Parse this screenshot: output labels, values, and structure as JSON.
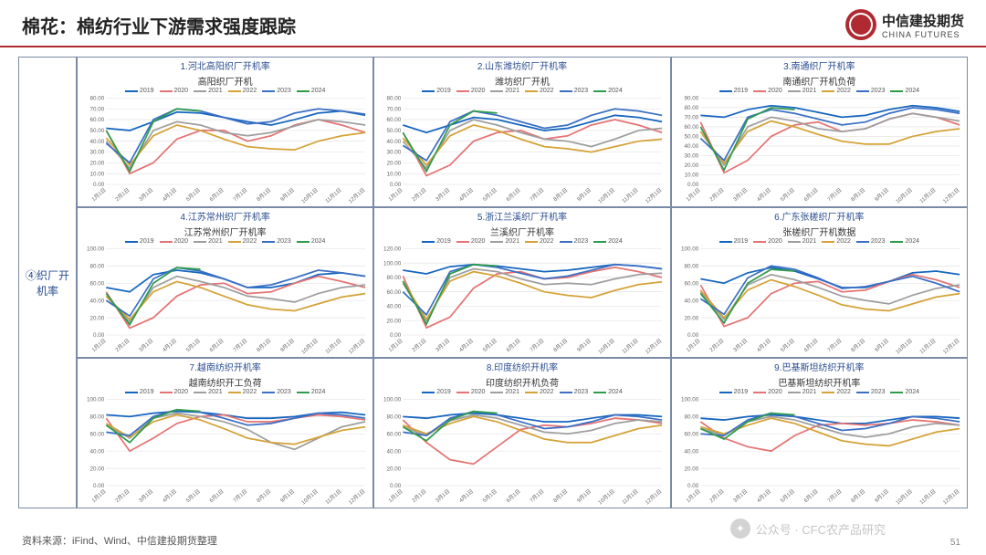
{
  "header": {
    "title": "棉花：棉纺行业下游需求强度跟踪",
    "logo_cn": "中信建投期货",
    "logo_en": "CHINA FUTURES"
  },
  "row_label": "④织厂开机率",
  "footer": "资料来源：iFind、Wind、中信建投期货整理",
  "page_number": "51",
  "watermark": "公众号 · CFC农产品研究",
  "legend_years": [
    "2019",
    "2020",
    "2021",
    "2022",
    "2023",
    "2024"
  ],
  "legend_colors": [
    "#1565c0",
    "#e57373",
    "#9e9e9e",
    "#d4a237",
    "#3a6fc4",
    "#2e9b4a"
  ],
  "x_labels": [
    "1月1日",
    "2月1日",
    "3月1日",
    "4月1日",
    "5月1日",
    "6月1日",
    "7月1日",
    "8月1日",
    "9月1日",
    "10月1日",
    "11月1日",
    "12月1日"
  ],
  "charts": [
    {
      "head": "1.河北高阳织厂开机率",
      "title": "高阳织厂开机",
      "ymin": 0,
      "ymax": 80,
      "ystep": 10,
      "series": [
        [
          52,
          50,
          58,
          67,
          66,
          62,
          58,
          55,
          60,
          66,
          68,
          64
        ],
        [
          50,
          10,
          20,
          42,
          50,
          50,
          40,
          45,
          55,
          60,
          55,
          48
        ],
        [
          40,
          15,
          50,
          58,
          55,
          48,
          45,
          48,
          54,
          60,
          58,
          55
        ],
        [
          43,
          18,
          45,
          55,
          50,
          42,
          35,
          33,
          32,
          40,
          45,
          48
        ],
        [
          38,
          20,
          60,
          70,
          68,
          62,
          56,
          58,
          66,
          70,
          68,
          65
        ],
        [
          50,
          12,
          58,
          70,
          68,
          null,
          null,
          null,
          null,
          null,
          null,
          null
        ]
      ]
    },
    {
      "head": "2.山东潍坊织厂开机率",
      "title": "潍坊织厂开机",
      "ymin": 0,
      "ymax": 80,
      "ystep": 10,
      "series": [
        [
          55,
          48,
          55,
          62,
          60,
          55,
          50,
          52,
          58,
          64,
          62,
          58
        ],
        [
          48,
          8,
          18,
          40,
          48,
          50,
          42,
          45,
          55,
          60,
          55,
          48
        ],
        [
          40,
          15,
          50,
          60,
          55,
          48,
          42,
          40,
          35,
          42,
          50,
          52
        ],
        [
          43,
          18,
          45,
          55,
          50,
          42,
          35,
          33,
          30,
          35,
          40,
          42
        ],
        [
          36,
          22,
          58,
          68,
          64,
          58,
          52,
          55,
          64,
          70,
          68,
          64
        ],
        [
          48,
          12,
          55,
          68,
          66,
          null,
          null,
          null,
          null,
          null,
          null,
          null
        ]
      ]
    },
    {
      "head": "3.南通织厂开机率",
      "title": "南通织厂开机负荷",
      "ymin": 0,
      "ymax": 90,
      "ystep": 10,
      "series": [
        [
          72,
          70,
          78,
          82,
          80,
          75,
          70,
          72,
          78,
          82,
          80,
          76
        ],
        [
          65,
          12,
          25,
          50,
          62,
          65,
          55,
          58,
          68,
          74,
          70,
          62
        ],
        [
          55,
          20,
          60,
          70,
          66,
          58,
          55,
          58,
          68,
          74,
          70,
          66
        ],
        [
          55,
          22,
          55,
          66,
          60,
          52,
          45,
          42,
          42,
          50,
          55,
          58
        ],
        [
          48,
          25,
          70,
          78,
          74,
          68,
          62,
          65,
          74,
          80,
          78,
          74
        ],
        [
          60,
          15,
          68,
          80,
          78,
          null,
          null,
          null,
          null,
          null,
          null,
          null
        ]
      ]
    },
    {
      "head": "4.江苏常州织厂开机率",
      "title": "江苏常州织厂开机率",
      "ymin": 0,
      "ymax": 100,
      "ystep": 20,
      "series": [
        [
          55,
          50,
          70,
          75,
          72,
          65,
          55,
          55,
          60,
          70,
          72,
          68
        ],
        [
          50,
          8,
          20,
          45,
          58,
          60,
          48,
          50,
          60,
          68,
          62,
          55
        ],
        [
          45,
          15,
          55,
          68,
          62,
          55,
          45,
          42,
          38,
          48,
          55,
          58
        ],
        [
          45,
          18,
          50,
          62,
          55,
          45,
          35,
          30,
          28,
          36,
          44,
          48
        ],
        [
          40,
          22,
          65,
          78,
          74,
          65,
          55,
          58,
          66,
          75,
          72,
          68
        ],
        [
          48,
          12,
          60,
          78,
          76,
          null,
          null,
          null,
          null,
          null,
          null,
          null
        ]
      ]
    },
    {
      "head": "5.浙江兰溪织厂开机率",
      "title": "兰溪织厂开机率",
      "ymin": 0,
      "ymax": 120,
      "ystep": 20,
      "series": [
        [
          90,
          85,
          95,
          98,
          96,
          92,
          88,
          90,
          94,
          98,
          96,
          92
        ],
        [
          82,
          10,
          25,
          65,
          85,
          88,
          78,
          80,
          88,
          94,
          88,
          80
        ],
        [
          72,
          20,
          80,
          92,
          88,
          78,
          70,
          72,
          70,
          78,
          84,
          86
        ],
        [
          75,
          22,
          75,
          88,
          82,
          72,
          60,
          55,
          52,
          62,
          70,
          74
        ],
        [
          60,
          28,
          88,
          98,
          94,
          86,
          78,
          82,
          90,
          98,
          96,
          92
        ],
        [
          75,
          15,
          85,
          98,
          96,
          null,
          null,
          null,
          null,
          null,
          null,
          null
        ]
      ]
    },
    {
      "head": "6.广东张槎织厂开机率",
      "title": "张槎织厂开机数据",
      "ymin": 0,
      "ymax": 100,
      "ystep": 20,
      "series": [
        [
          65,
          60,
          72,
          78,
          74,
          65,
          55,
          55,
          62,
          72,
          74,
          70
        ],
        [
          58,
          10,
          20,
          48,
          60,
          62,
          50,
          52,
          62,
          70,
          64,
          55
        ],
        [
          50,
          18,
          58,
          70,
          64,
          55,
          45,
          40,
          36,
          46,
          54,
          58
        ],
        [
          52,
          20,
          52,
          64,
          56,
          46,
          35,
          30,
          28,
          36,
          44,
          48
        ],
        [
          42,
          24,
          66,
          80,
          76,
          66,
          54,
          56,
          62,
          68,
          60,
          50
        ],
        [
          48,
          14,
          60,
          76,
          74,
          null,
          null,
          null,
          null,
          null,
          null,
          null
        ]
      ]
    },
    {
      "head": "7.越南纺织开机率",
      "title": "越南纺织开工负荷",
      "ymin": 0,
      "ymax": 100,
      "ystep": 20,
      "series": [
        [
          82,
          80,
          84,
          86,
          85,
          82,
          78,
          78,
          80,
          84,
          85,
          82
        ],
        [
          78,
          40,
          55,
          72,
          80,
          82,
          74,
          74,
          78,
          82,
          80,
          76
        ],
        [
          70,
          55,
          78,
          84,
          80,
          74,
          65,
          50,
          42,
          55,
          68,
          74
        ],
        [
          72,
          56,
          74,
          82,
          76,
          66,
          55,
          50,
          48,
          56,
          64,
          68
        ],
        [
          62,
          58,
          80,
          88,
          85,
          78,
          70,
          72,
          78,
          84,
          82,
          78
        ],
        [
          70,
          50,
          78,
          88,
          86,
          null,
          null,
          null,
          null,
          null,
          null,
          null
        ]
      ]
    },
    {
      "head": "8.印度纺织开机率",
      "title": "印度纺织开机负荷",
      "ymin": 0,
      "ymax": 100,
      "ystep": 20,
      "series": [
        [
          80,
          78,
          82,
          84,
          82,
          78,
          74,
          74,
          78,
          82,
          82,
          80
        ],
        [
          76,
          50,
          30,
          25,
          45,
          65,
          70,
          68,
          72,
          78,
          76,
          72
        ],
        [
          68,
          58,
          75,
          82,
          78,
          70,
          62,
          60,
          64,
          72,
          76,
          74
        ],
        [
          70,
          60,
          72,
          80,
          74,
          64,
          54,
          50,
          50,
          58,
          66,
          70
        ],
        [
          62,
          58,
          78,
          86,
          82,
          74,
          66,
          68,
          74,
          82,
          80,
          76
        ],
        [
          68,
          52,
          76,
          86,
          84,
          null,
          null,
          null,
          null,
          null,
          null,
          null
        ]
      ]
    },
    {
      "head": "9.巴基斯坦纺织开机率",
      "title": "巴基斯坦纺织开机率",
      "ymin": 0,
      "ymax": 100,
      "ystep": 20,
      "series": [
        [
          78,
          76,
          80,
          82,
          80,
          76,
          72,
          72,
          76,
          80,
          80,
          78
        ],
        [
          74,
          55,
          45,
          40,
          58,
          70,
          72,
          70,
          72,
          76,
          74,
          70
        ],
        [
          66,
          58,
          74,
          80,
          76,
          68,
          60,
          56,
          60,
          68,
          72,
          70
        ],
        [
          68,
          60,
          70,
          78,
          72,
          62,
          52,
          48,
          46,
          54,
          62,
          66
        ],
        [
          60,
          58,
          76,
          84,
          80,
          72,
          64,
          66,
          72,
          80,
          78,
          74
        ],
        [
          66,
          54,
          74,
          84,
          82,
          null,
          null,
          null,
          null,
          null,
          null,
          null
        ]
      ]
    }
  ]
}
